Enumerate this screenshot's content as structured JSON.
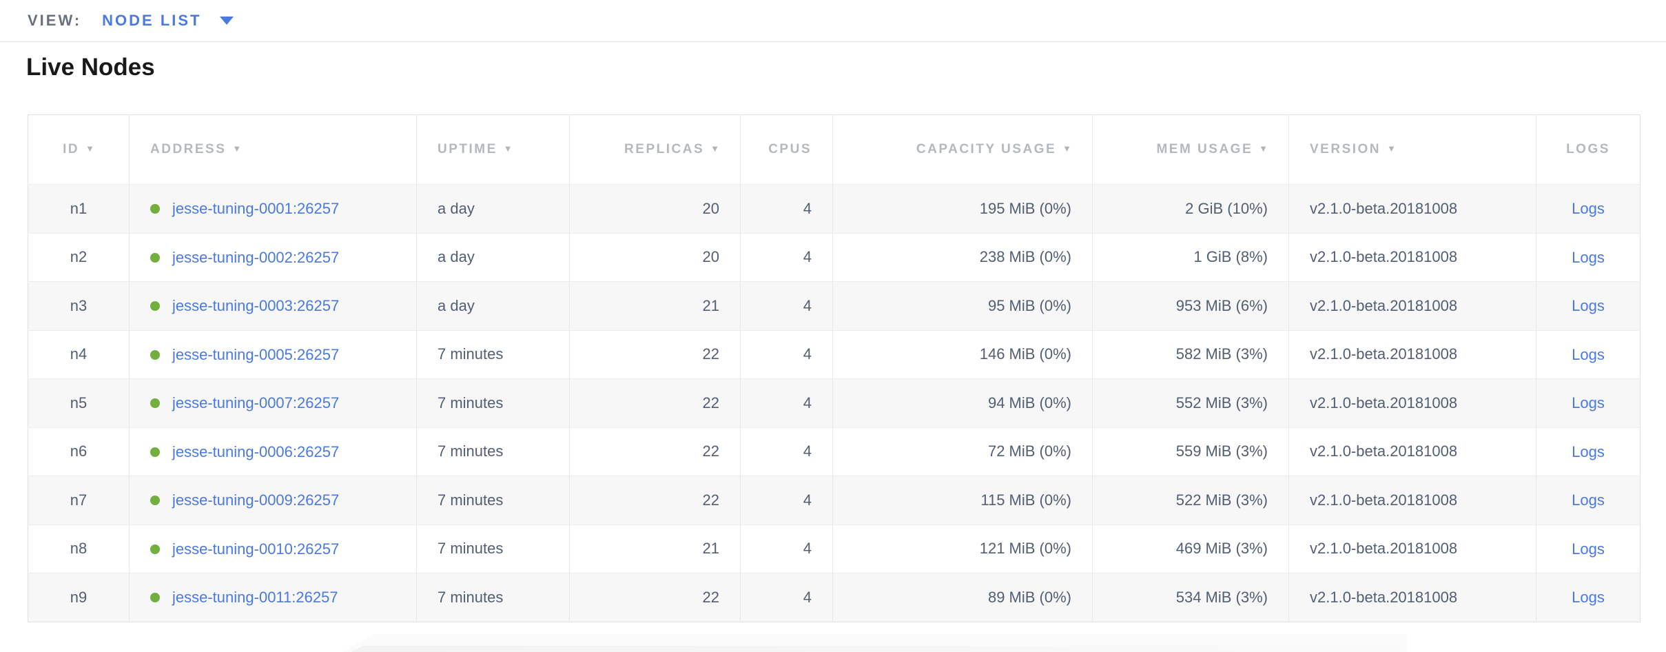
{
  "icons": {
    "sort_arrow": "▼",
    "dropdown_caret": "▼"
  },
  "colors": {
    "accent_blue": "#4a79df",
    "live_green": "#73af3e",
    "cell_text": "#525e73",
    "header_text": "#b4b9be",
    "row_stripe": "#f7f7f7"
  },
  "view_bar": {
    "label": "VIEW:",
    "selected": "NODE LIST"
  },
  "page": {
    "title": "Live Nodes"
  },
  "table": {
    "columns": [
      {
        "key": "id",
        "label": "ID",
        "sortable": true
      },
      {
        "key": "address",
        "label": "ADDRESS",
        "sortable": true
      },
      {
        "key": "uptime",
        "label": "UPTIME",
        "sortable": true
      },
      {
        "key": "replicas",
        "label": "REPLICAS",
        "sortable": true
      },
      {
        "key": "cpus",
        "label": "CPUS",
        "sortable": false
      },
      {
        "key": "capacity_usage",
        "label": "CAPACITY USAGE",
        "sortable": true
      },
      {
        "key": "mem_usage",
        "label": "MEM USAGE",
        "sortable": true
      },
      {
        "key": "version",
        "label": "VERSION",
        "sortable": true
      },
      {
        "key": "logs",
        "label": "LOGS",
        "sortable": false
      }
    ],
    "rows": [
      {
        "id": "n1",
        "status": "live",
        "address": "jesse-tuning-0001:26257",
        "uptime": "a day",
        "replicas": "20",
        "cpus": "4",
        "capacity_usage": "195 MiB (0%)",
        "mem_usage": "2 GiB (10%)",
        "version": "v2.1.0-beta.20181008",
        "logs_label": "Logs"
      },
      {
        "id": "n2",
        "status": "live",
        "address": "jesse-tuning-0002:26257",
        "uptime": "a day",
        "replicas": "20",
        "cpus": "4",
        "capacity_usage": "238 MiB (0%)",
        "mem_usage": "1 GiB (8%)",
        "version": "v2.1.0-beta.20181008",
        "logs_label": "Logs"
      },
      {
        "id": "n3",
        "status": "live",
        "address": "jesse-tuning-0003:26257",
        "uptime": "a day",
        "replicas": "21",
        "cpus": "4",
        "capacity_usage": "95 MiB (0%)",
        "mem_usage": "953 MiB (6%)",
        "version": "v2.1.0-beta.20181008",
        "logs_label": "Logs"
      },
      {
        "id": "n4",
        "status": "live",
        "address": "jesse-tuning-0005:26257",
        "uptime": "7 minutes",
        "replicas": "22",
        "cpus": "4",
        "capacity_usage": "146 MiB (0%)",
        "mem_usage": "582 MiB (3%)",
        "version": "v2.1.0-beta.20181008",
        "logs_label": "Logs"
      },
      {
        "id": "n5",
        "status": "live",
        "address": "jesse-tuning-0007:26257",
        "uptime": "7 minutes",
        "replicas": "22",
        "cpus": "4",
        "capacity_usage": "94 MiB (0%)",
        "mem_usage": "552 MiB (3%)",
        "version": "v2.1.0-beta.20181008",
        "logs_label": "Logs"
      },
      {
        "id": "n6",
        "status": "live",
        "address": "jesse-tuning-0006:26257",
        "uptime": "7 minutes",
        "replicas": "22",
        "cpus": "4",
        "capacity_usage": "72 MiB (0%)",
        "mem_usage": "559 MiB (3%)",
        "version": "v2.1.0-beta.20181008",
        "logs_label": "Logs"
      },
      {
        "id": "n7",
        "status": "live",
        "address": "jesse-tuning-0009:26257",
        "uptime": "7 minutes",
        "replicas": "22",
        "cpus": "4",
        "capacity_usage": "115 MiB (0%)",
        "mem_usage": "522 MiB (3%)",
        "version": "v2.1.0-beta.20181008",
        "logs_label": "Logs"
      },
      {
        "id": "n8",
        "status": "live",
        "address": "jesse-tuning-0010:26257",
        "uptime": "7 minutes",
        "replicas": "21",
        "cpus": "4",
        "capacity_usage": "121 MiB (0%)",
        "mem_usage": "469 MiB (3%)",
        "version": "v2.1.0-beta.20181008",
        "logs_label": "Logs"
      },
      {
        "id": "n9",
        "status": "live",
        "address": "jesse-tuning-0011:26257",
        "uptime": "7 minutes",
        "replicas": "22",
        "cpus": "4",
        "capacity_usage": "89 MiB (0%)",
        "mem_usage": "534 MiB (3%)",
        "version": "v2.1.0-beta.20181008",
        "logs_label": "Logs"
      }
    ]
  }
}
